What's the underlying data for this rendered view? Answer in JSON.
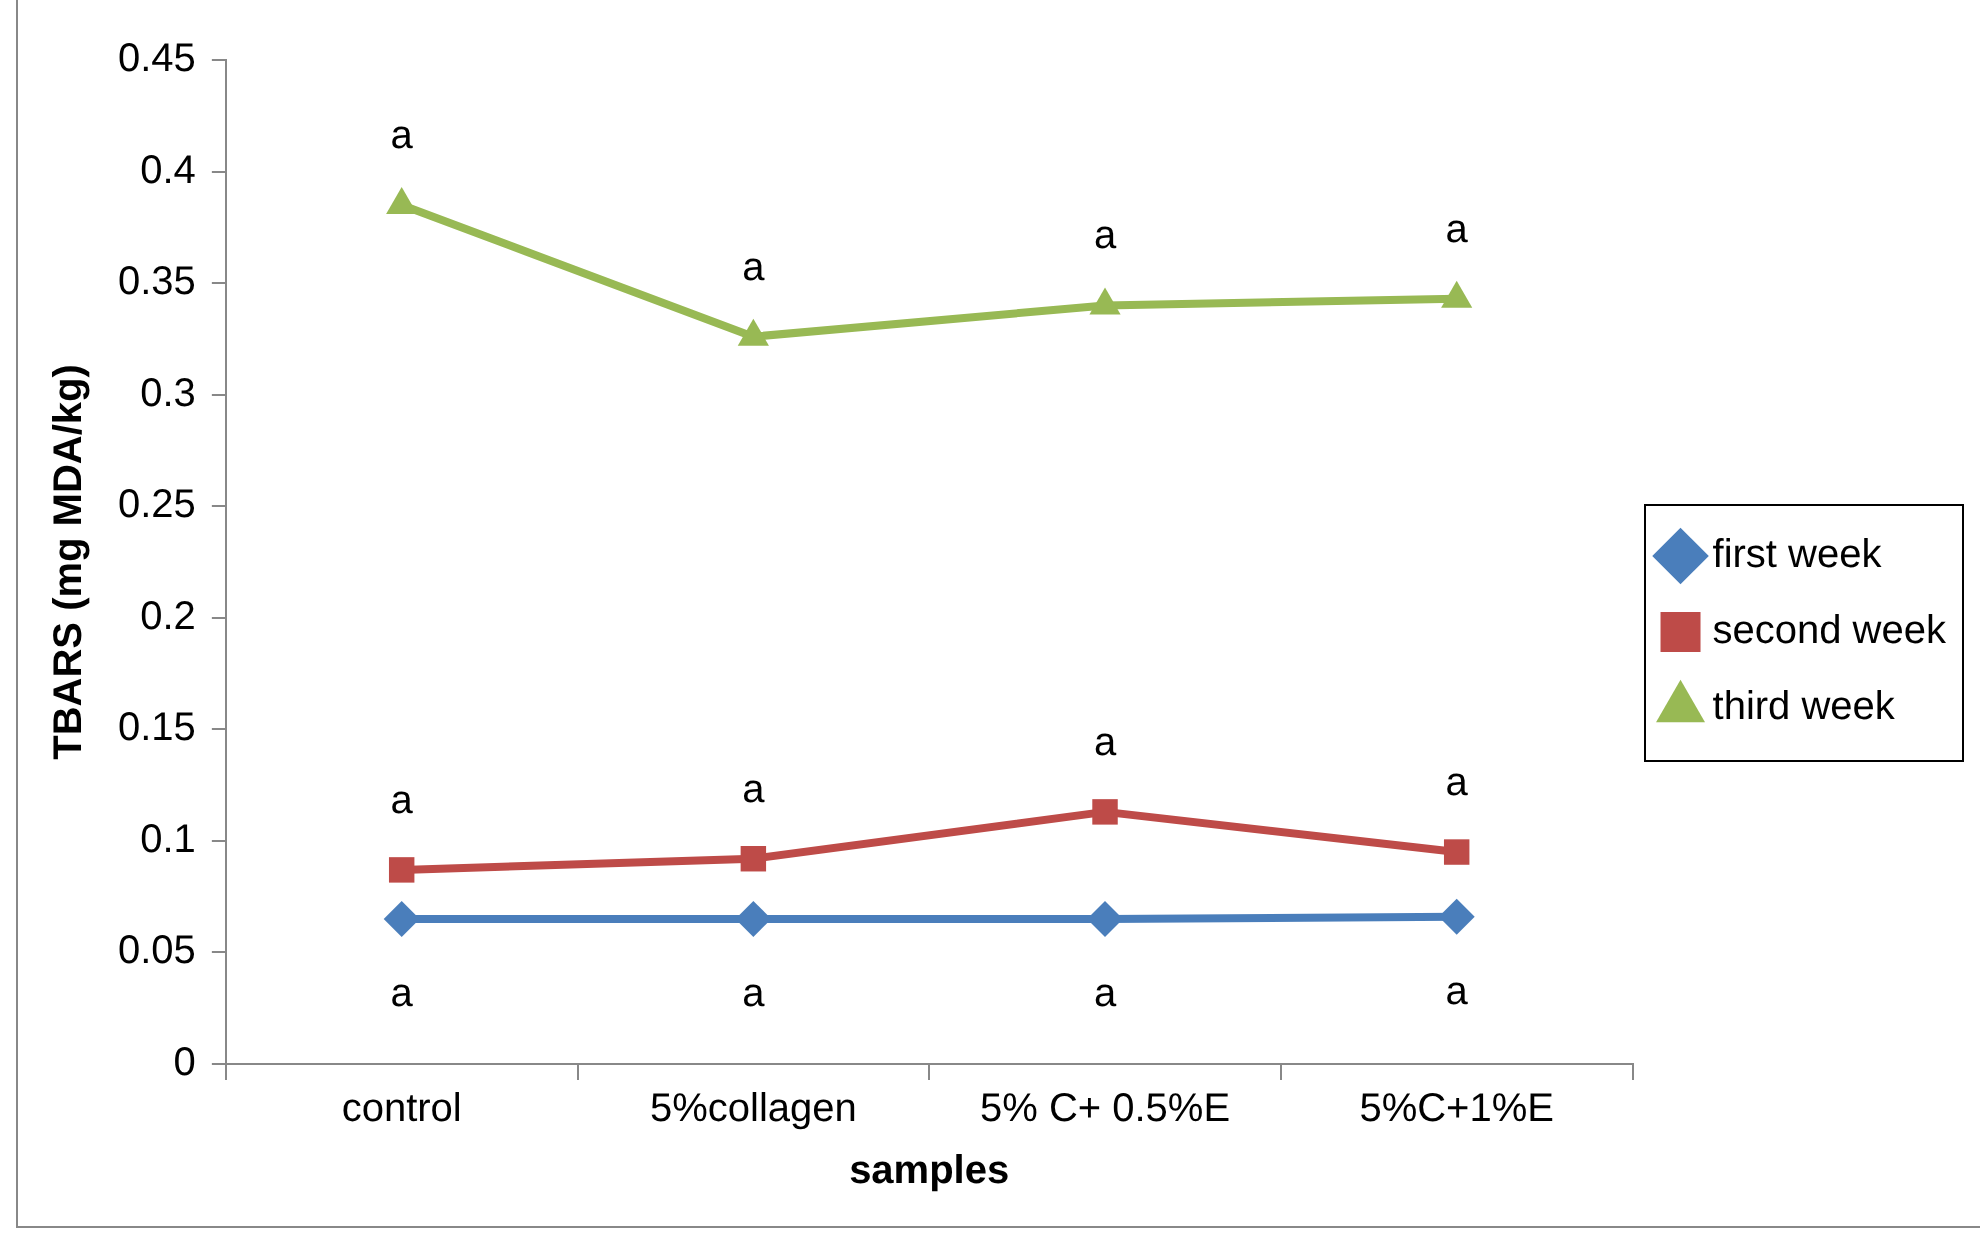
{
  "chart_data": {
    "type": "line",
    "xlabel": "samples",
    "ylabel": "TBARS (mg MDA/kg)",
    "categories": [
      "control",
      "5%collagen",
      "5% C+ 0.5%E",
      "5%C+1%E"
    ],
    "series": [
      {
        "name": "first week",
        "color": "#4a7ebb",
        "marker": "diamond",
        "values": [
          0.065,
          0.065,
          0.065,
          0.066
        ]
      },
      {
        "name": "second week",
        "color": "#be4b48",
        "marker": "square",
        "values": [
          0.087,
          0.092,
          0.113,
          0.095
        ]
      },
      {
        "name": "third week",
        "color": "#98b954",
        "marker": "triangle",
        "values": [
          0.385,
          0.326,
          0.34,
          0.343
        ]
      }
    ],
    "ylim": [
      0,
      0.45
    ],
    "yticks": [
      0,
      0.05,
      0.1,
      0.15,
      0.2,
      0.25,
      0.3,
      0.35,
      0.4,
      0.45
    ],
    "grid": false,
    "legend": "right",
    "line_style": "solid",
    "annotations": [
      {
        "text": "a",
        "x": "control",
        "y": 0.065
      },
      {
        "text": "a",
        "x": "5%collagen",
        "y": 0.065
      },
      {
        "text": "a",
        "x": "5% C+ 0.5%E",
        "y": 0.065
      },
      {
        "text": "a",
        "x": "5%C+1%E",
        "y": 0.066
      },
      {
        "text": "a",
        "x": "control",
        "y": 0.087
      },
      {
        "text": "a",
        "x": "5%collagen",
        "y": 0.092
      },
      {
        "text": "a",
        "x": "5% C+ 0.5%E",
        "y": 0.113
      },
      {
        "text": "a",
        "x": "5%C+1%E",
        "y": 0.095
      },
      {
        "text": "a",
        "x": "control",
        "y": 0.385
      },
      {
        "text": "a",
        "x": "5%collagen",
        "y": 0.326
      },
      {
        "text": "a",
        "x": "5% C+ 0.5%E",
        "y": 0.34
      },
      {
        "text": "a",
        "x": "5%C+1%E",
        "y": 0.343
      }
    ]
  }
}
